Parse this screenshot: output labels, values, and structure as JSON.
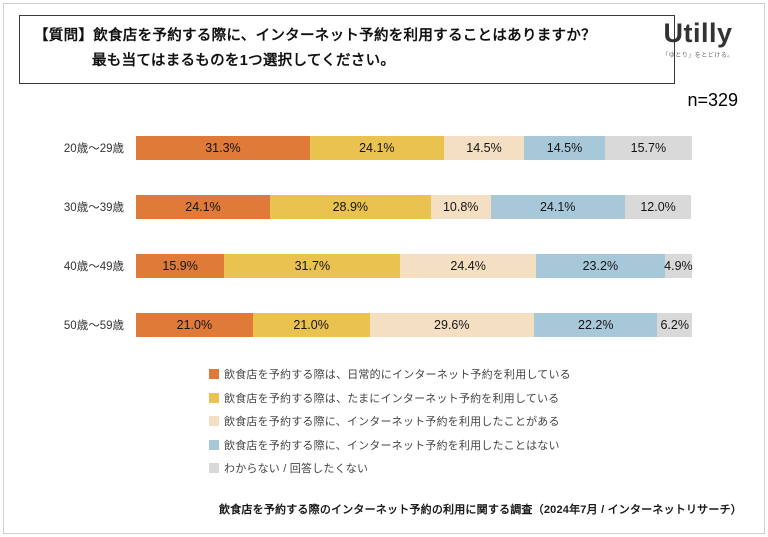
{
  "header": {
    "question_line1": "【質問】飲食店を予約する際に、インターネット予約を利用することはありますか？",
    "question_line2": "最も当てはまるものを1つ選択してください。",
    "logo": {
      "text": "Utilly",
      "tagline": "「ゆとり」をとどける。"
    }
  },
  "sample_size": "n=329",
  "chart_data": {
    "type": "bar",
    "orientation": "horizontal",
    "stacked": true,
    "title": "",
    "xlabel": "",
    "ylabel": "",
    "xlim": [
      0,
      100
    ],
    "value_suffix": "%",
    "categories": [
      "20歳〜29歳",
      "30歳〜39歳",
      "40歳〜49歳",
      "50歳〜59歳"
    ],
    "series": [
      {
        "name": "飲食店を予約する際は、日常的にインターネット予約を利用している",
        "color": "#E07A38",
        "values": [
          31.3,
          24.1,
          15.9,
          21.0
        ]
      },
      {
        "name": "飲食店を予約する際は、たまにインターネット予約を利用している",
        "color": "#E9C24F",
        "values": [
          24.1,
          28.9,
          31.7,
          21.0
        ]
      },
      {
        "name": "飲食店を予約する際に、インターネット予約を利用したことがある",
        "color": "#F5DFC2",
        "values": [
          14.5,
          10.8,
          24.4,
          29.6
        ]
      },
      {
        "name": "飲食店を予約する際に、インターネット予約を利用したことはない",
        "color": "#A6C8D9",
        "values": [
          14.5,
          24.1,
          23.2,
          22.2
        ]
      },
      {
        "name": "わからない / 回答したくない",
        "color": "#D9D9D9",
        "values": [
          15.7,
          12.0,
          4.9,
          6.2
        ]
      }
    ],
    "legend_position": "bottom-left"
  },
  "footer": {
    "source": "飲食店を予約する際のインターネット予約の利用に関する調査（2024年7月 / インターネットリサーチ）"
  }
}
